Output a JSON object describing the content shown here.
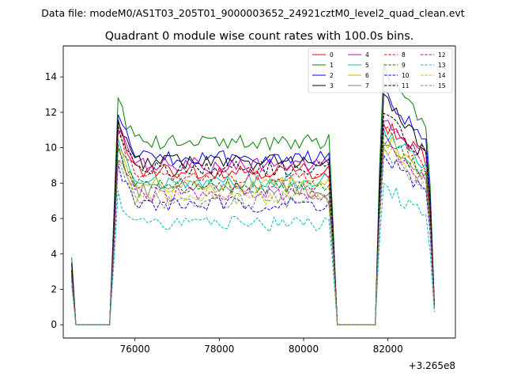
{
  "page": {
    "suptitle": "Data file: modeM0/AS1T03_205T01_9000003652_24921cztM0_level2_quad_clean.evt"
  },
  "chart_data": {
    "type": "line",
    "title": "Quadrant 0 module wise count rates with 100.0s bins.",
    "xlabel": "",
    "ylabel": "",
    "x_offset_label": "+3.265e8",
    "xlim": [
      74300,
      83600
    ],
    "ylim": [
      -0.75,
      15.75
    ],
    "x_ticks": [
      76000,
      78000,
      80000,
      82000
    ],
    "x_tick_labels": [
      "76000",
      "78000",
      "80000",
      "82000"
    ],
    "y_ticks": [
      0,
      2,
      4,
      6,
      8,
      10,
      12,
      14
    ],
    "y_tick_labels": [
      "0",
      "2",
      "4",
      "6",
      "8",
      "10",
      "12",
      "14"
    ],
    "grid": false,
    "legend_position": "top-right",
    "bin_seconds": 100,
    "x_start": 74500,
    "x_step": 100,
    "series": [
      {
        "name": "0",
        "color": "#ff0000",
        "dash": "solid",
        "level": 8.7,
        "peak": 11.3,
        "post": 11.4,
        "decay": 9.3,
        "initial": 3.0
      },
      {
        "name": "1",
        "color": "#008000",
        "dash": "solid",
        "level": 10.3,
        "peak": 12.6,
        "post": 14.6,
        "decay": 11.3,
        "initial": 3.8
      },
      {
        "name": "2",
        "color": "#0000ff",
        "dash": "solid",
        "level": 9.4,
        "peak": 11.9,
        "post": 13.1,
        "decay": 10.3,
        "initial": 3.4
      },
      {
        "name": "3",
        "color": "#000000",
        "dash": "solid",
        "level": 9.2,
        "peak": 11.7,
        "post": 12.8,
        "decay": 10.0,
        "initial": 3.5
      },
      {
        "name": "4",
        "color": "#c000c0",
        "dash": "solid",
        "level": 9.0,
        "peak": 11.0,
        "post": 11.6,
        "decay": 9.6,
        "initial": 3.1
      },
      {
        "name": "5",
        "color": "#00bfbf",
        "dash": "solid",
        "level": 8.1,
        "peak": 10.4,
        "post": 10.9,
        "decay": 8.8,
        "initial": 2.9
      },
      {
        "name": "6",
        "color": "#bfbf00",
        "dash": "solid",
        "level": 7.9,
        "peak": 10.1,
        "post": 10.6,
        "decay": 8.6,
        "initial": 2.8
      },
      {
        "name": "7",
        "color": "#808080",
        "dash": "solid",
        "level": 7.6,
        "peak": 9.9,
        "post": 10.3,
        "decay": 8.4,
        "initial": 2.7
      },
      {
        "name": "8",
        "color": "#ff0000",
        "dash": "dashed",
        "level": 8.4,
        "peak": 10.7,
        "post": 11.3,
        "decay": 9.0,
        "initial": 3.0
      },
      {
        "name": "9",
        "color": "#008000",
        "dash": "dashed",
        "level": 7.8,
        "peak": 10.0,
        "post": 10.6,
        "decay": 8.5,
        "initial": 2.8
      },
      {
        "name": "10",
        "color": "#0000ff",
        "dash": "dashed",
        "level": 6.8,
        "peak": 8.9,
        "post": 9.6,
        "decay": 7.5,
        "initial": 2.5
      },
      {
        "name": "11",
        "color": "#000000",
        "dash": "dashed",
        "level": 8.8,
        "peak": 11.2,
        "post": 11.8,
        "decay": 9.6,
        "initial": 3.1
      },
      {
        "name": "12",
        "color": "#c000c0",
        "dash": "dashed",
        "level": 7.4,
        "peak": 9.6,
        "post": 10.2,
        "decay": 8.1,
        "initial": 2.7
      },
      {
        "name": "13",
        "color": "#00bfbf",
        "dash": "dashed",
        "level": 5.7,
        "peak": 7.3,
        "post": 7.9,
        "decay": 6.0,
        "initial": 2.2
      },
      {
        "name": "14",
        "color": "#bfbf00",
        "dash": "dashed",
        "level": 7.2,
        "peak": 9.4,
        "post": 10.0,
        "decay": 7.9,
        "initial": 2.6
      },
      {
        "name": "15",
        "color": "#808080",
        "dash": "dashed",
        "level": 7.0,
        "peak": 9.2,
        "post": 9.8,
        "decay": 7.7,
        "initial": 2.6
      }
    ]
  }
}
